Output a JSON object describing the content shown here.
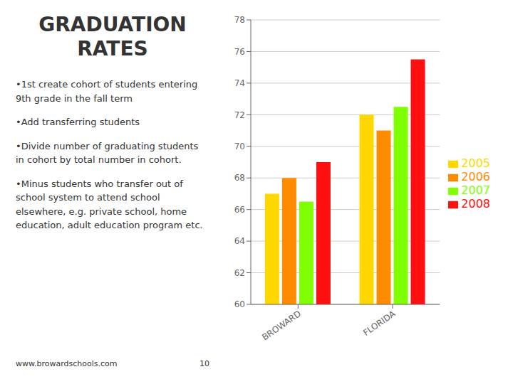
{
  "chart_data": {
    "type": "bar",
    "title": "GRADUATION RATES",
    "annotations": [
      "•1st create cohort of students entering 9th grade in the fall term",
      "•Add transferring students",
      "•Divide number of graduating students in cohort by total number in cohort.",
      "•Minus students who transfer out of school system to attend school elsewhere, e.g. private school, home education, adult education program etc.",
      "www.browardschools.com",
      "10"
    ],
    "categories": [
      "BROWARD",
      "FLORIDA"
    ],
    "series": [
      {
        "name": "2005",
        "color": "#FFD700",
        "values": [
          67.0,
          72.0
        ]
      },
      {
        "name": "2006",
        "color": "#FF8C00",
        "values": [
          68.0,
          71.0
        ]
      },
      {
        "name": "2007",
        "color": "#7FFF00",
        "values": [
          66.5,
          72.5
        ]
      },
      {
        "name": "2008",
        "color": "#FF1010",
        "values": [
          69.0,
          75.5
        ]
      }
    ],
    "ylim": [
      60,
      78
    ],
    "yticks": [
      60,
      62,
      64,
      66,
      68,
      70,
      72,
      74,
      76,
      78
    ],
    "grid": true,
    "legend": "right"
  }
}
